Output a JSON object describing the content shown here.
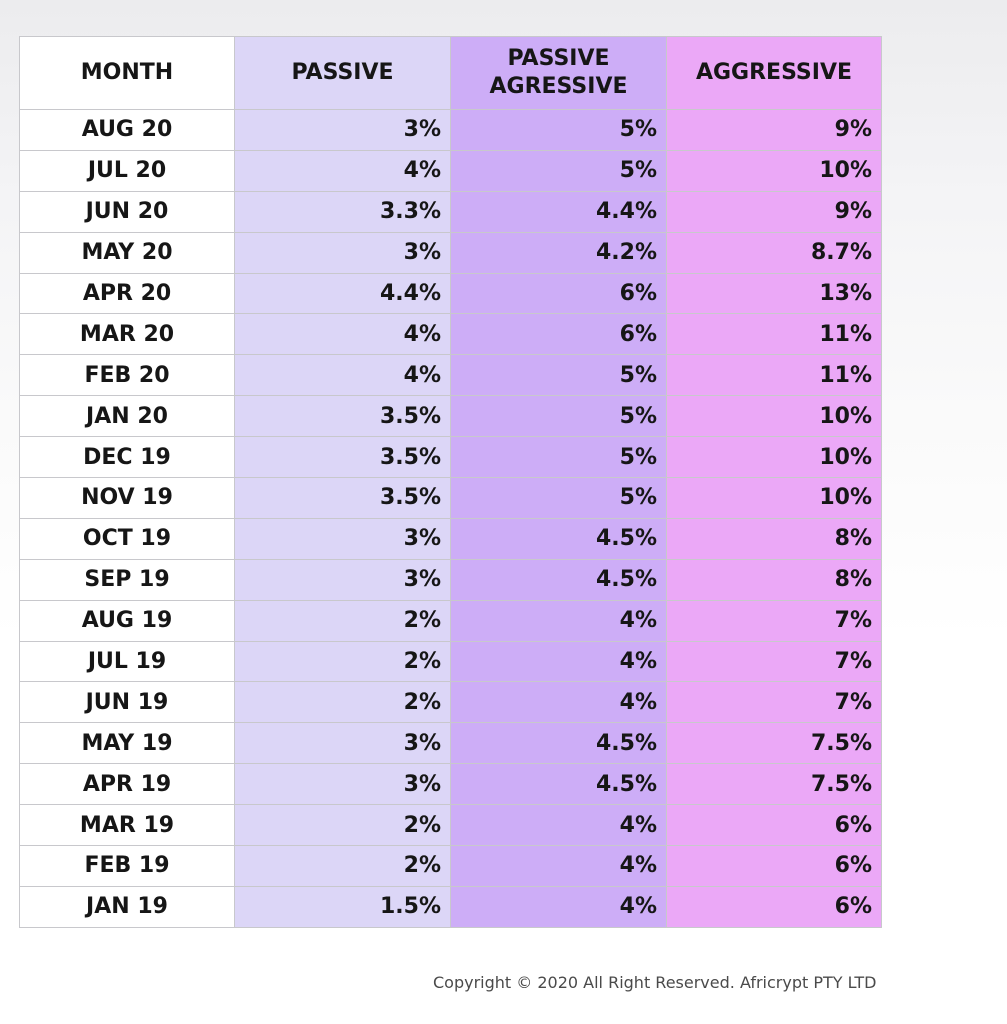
{
  "table": {
    "headers": {
      "month": "MONTH",
      "passive": "PASSIVE",
      "passive_aggressive_line1": "PASSIVE",
      "passive_aggressive_line2": "AGRESSIVE",
      "aggressive": "AGGRESSIVE"
    },
    "rows": [
      {
        "month": "AUG 20",
        "passive": "3%",
        "passive_aggressive": "5%",
        "aggressive": "9%"
      },
      {
        "month": "JUL 20",
        "passive": "4%",
        "passive_aggressive": "5%",
        "aggressive": "10%"
      },
      {
        "month": "JUN 20",
        "passive": "3.3%",
        "passive_aggressive": "4.4%",
        "aggressive": "9%"
      },
      {
        "month": "MAY 20",
        "passive": "3%",
        "passive_aggressive": "4.2%",
        "aggressive": "8.7%"
      },
      {
        "month": "APR 20",
        "passive": "4.4%",
        "passive_aggressive": "6%",
        "aggressive": "13%"
      },
      {
        "month": "MAR 20",
        "passive": "4%",
        "passive_aggressive": "6%",
        "aggressive": "11%"
      },
      {
        "month": "FEB 20",
        "passive": "4%",
        "passive_aggressive": "5%",
        "aggressive": "11%"
      },
      {
        "month": "JAN 20",
        "passive": "3.5%",
        "passive_aggressive": "5%",
        "aggressive": "10%"
      },
      {
        "month": "DEC 19",
        "passive": "3.5%",
        "passive_aggressive": "5%",
        "aggressive": "10%"
      },
      {
        "month": "NOV 19",
        "passive": "3.5%",
        "passive_aggressive": "5%",
        "aggressive": "10%"
      },
      {
        "month": "OCT 19",
        "passive": "3%",
        "passive_aggressive": "4.5%",
        "aggressive": "8%"
      },
      {
        "month": "SEP 19",
        "passive": "3%",
        "passive_aggressive": "4.5%",
        "aggressive": "8%"
      },
      {
        "month": "AUG 19",
        "passive": "2%",
        "passive_aggressive": "4%",
        "aggressive": "7%"
      },
      {
        "month": "JUL 19",
        "passive": "2%",
        "passive_aggressive": "4%",
        "aggressive": "7%"
      },
      {
        "month": "JUN 19",
        "passive": "2%",
        "passive_aggressive": "4%",
        "aggressive": "7%"
      },
      {
        "month": "MAY 19",
        "passive": "3%",
        "passive_aggressive": "4.5%",
        "aggressive": "7.5%"
      },
      {
        "month": "APR 19",
        "passive": "3%",
        "passive_aggressive": "4.5%",
        "aggressive": "7.5%"
      },
      {
        "month": "MAR 19",
        "passive": "2%",
        "passive_aggressive": "4%",
        "aggressive": "6%"
      },
      {
        "month": "FEB 19",
        "passive": "2%",
        "passive_aggressive": "4%",
        "aggressive": "6%"
      },
      {
        "month": "JAN 19",
        "passive": "1.5%",
        "passive_aggressive": "4%",
        "aggressive": "6%"
      }
    ]
  },
  "colors": {
    "month_column": "#ffffff",
    "passive_column": "#dcd6f7",
    "passive_aggressive_column": "#cdadf7",
    "aggressive_column": "#eba8f7"
  },
  "footer": {
    "copyright": "Copyright © 2020 All Right Reserved. Africrypt PTY LTD"
  }
}
